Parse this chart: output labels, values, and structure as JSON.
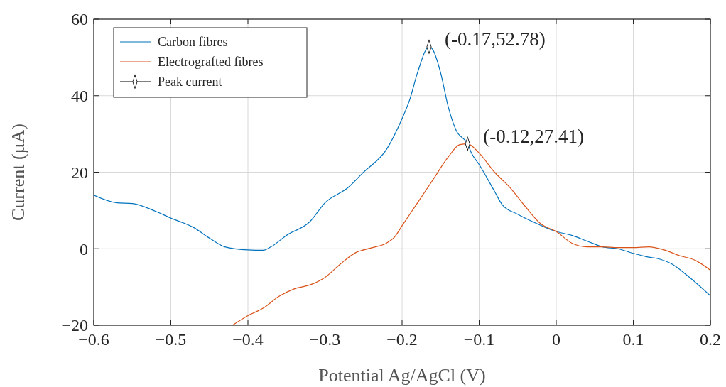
{
  "chart_data": {
    "type": "line",
    "xlabel": "Potential Ag/AgCl (V)",
    "ylabel": "Current (µA)",
    "xlim": [
      -0.6,
      0.2
    ],
    "xticks": [
      {
        "value": -0.6,
        "label": "−0.6"
      },
      {
        "value": -0.5,
        "label": "−0.5"
      },
      {
        "value": -0.4,
        "label": "−0.4"
      },
      {
        "value": -0.3,
        "label": "−0.3"
      },
      {
        "value": -0.2,
        "label": "−0.2"
      },
      {
        "value": -0.1,
        "label": "−0.1"
      },
      0,
      0.1,
      0.2
    ],
    "ylim": [
      -20,
      60
    ],
    "yticks": [
      {
        "value": -20,
        "label": "−20"
      },
      0,
      20,
      40,
      60
    ],
    "grid": true,
    "legend": "top left",
    "series": [
      {
        "name": "Carbon fibres",
        "color": "#0072bd",
        "x": [
          -0.6,
          -0.57,
          -0.55,
          -0.52,
          -0.5,
          -0.47,
          -0.45,
          -0.43,
          -0.4,
          -0.38,
          -0.37,
          -0.35,
          -0.32,
          -0.3,
          -0.27,
          -0.25,
          -0.22,
          -0.2,
          -0.19,
          -0.18,
          -0.165,
          -0.16,
          -0.15,
          -0.14,
          -0.13,
          -0.115,
          -0.11,
          -0.1,
          -0.08,
          -0.07,
          -0.05,
          -0.03,
          0,
          0.02,
          0.04,
          0.06,
          0.08,
          0.1,
          0.12,
          0.13,
          0.15,
          0.17,
          0.2
        ],
        "values": [
          14,
          12,
          11.8,
          9.8,
          8,
          5.5,
          2.8,
          0.5,
          -0.3,
          -0.4,
          0.5,
          3.5,
          7,
          12,
          16,
          20,
          26,
          34,
          39,
          46,
          52.78,
          52,
          46,
          37,
          31,
          27.41,
          25,
          22,
          15,
          11.5,
          9,
          7,
          4.5,
          3.5,
          2,
          0.5,
          0,
          -1.2,
          -2.2,
          -2.5,
          -4,
          -7,
          -12.3
        ]
      },
      {
        "name": "Electrografted fibres",
        "color": "#d95319",
        "x": [
          -0.42,
          -0.4,
          -0.38,
          -0.36,
          -0.34,
          -0.32,
          -0.3,
          -0.28,
          -0.26,
          -0.24,
          -0.22,
          -0.21,
          -0.2,
          -0.18,
          -0.16,
          -0.14,
          -0.125,
          -0.115,
          -0.1,
          -0.08,
          -0.06,
          -0.04,
          -0.02,
          0,
          0.02,
          0.04,
          0.06,
          0.08,
          0.1,
          0.12,
          0.14,
          0.16,
          0.18,
          0.2
        ],
        "values": [
          -20,
          -17.5,
          -15.5,
          -12.5,
          -10.5,
          -9.5,
          -7.5,
          -4,
          -1,
          0.2,
          1.5,
          3,
          6,
          12,
          18,
          24,
          27.2,
          27.41,
          25,
          20,
          16,
          11,
          6.5,
          4.5,
          1.5,
          0.5,
          0.5,
          0.3,
          0.3,
          0.5,
          -0.3,
          -1.8,
          -3,
          -5.6
        ]
      },
      {
        "name": "Peak current",
        "type": "scatter",
        "color": "#000000",
        "marker": "diamond",
        "x": [
          -0.165,
          -0.115
        ],
        "values": [
          52.78,
          27.41
        ]
      }
    ],
    "annotations": [
      {
        "text": "(-0.17,52.78)",
        "x": -0.165,
        "y": 52.78
      },
      {
        "text": "(-0.12,27.41)",
        "x": -0.115,
        "y": 27.41
      }
    ]
  }
}
